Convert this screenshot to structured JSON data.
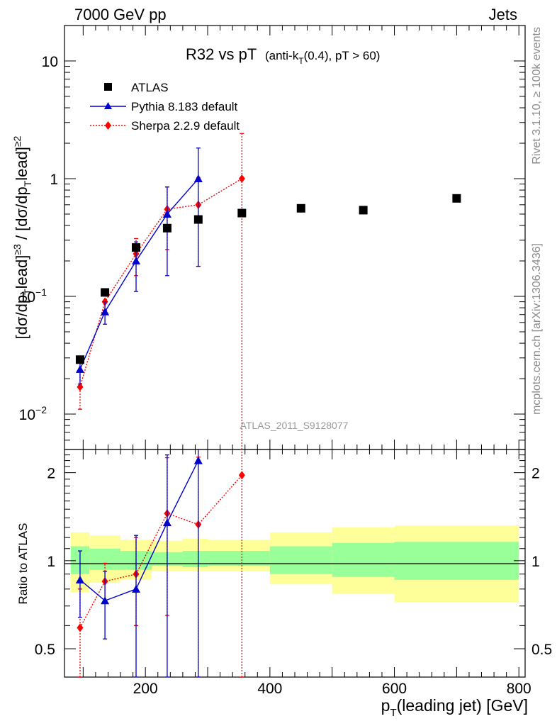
{
  "header": {
    "left": "7000 GeV pp",
    "right": "Jets"
  },
  "side_labels": {
    "rivet": "Rivet 3.1.10, ≥ 100k events",
    "mcplots": "mcplots.cern.ch [arXiv:1306.3436]"
  },
  "watermark": "ATLAS_2011_S9128077",
  "colors": {
    "atlas": "#000000",
    "pythia": "#0000cc",
    "sherpa": "#ff0000",
    "band_inner": "#99ff99",
    "band_outer": "#ffff99"
  },
  "chart_data": {
    "type": "scatter",
    "title": "R32 vs pT",
    "title_sub": "(anti-k",
    "title_sub_T": "T",
    "title_sub_rest": "(0.4), pT > 60)",
    "xlabel": "(leading jet) [GeV]",
    "xlabel_p": "p",
    "xlabel_T": "T",
    "ylabel": "[dσ/dpᵀlead]≥3 / [dσ/dpᵀlead]≥2",
    "ylabel_parts": {
      "a": "[dσ/dp",
      "b": "lead]",
      "c": "≥3",
      "d": " / [dσ/dp",
      "e": "lead]",
      "f": "≥2",
      "T": "T"
    },
    "ratio_ylabel": "Ratio to ATLAS",
    "xlim": [
      70,
      810
    ],
    "ylim": [
      0.005,
      20
    ],
    "ratio_ylim": [
      0.4,
      2.4
    ],
    "xticks": [
      200,
      400,
      600,
      800
    ],
    "xtick_labels": [
      "200",
      "400",
      "600",
      "800"
    ],
    "yticks_main": [
      {
        "base": "10",
        "exp": "−2"
      },
      {
        "base": "10",
        "exp": "−1"
      },
      {
        "base": "1",
        "exp": ""
      },
      {
        "base": "10",
        "exp": ""
      }
    ],
    "yticks_ratio": [
      "0.5",
      "1",
      "2"
    ],
    "yticks_ratio_right": [
      "0.5",
      "1",
      "2"
    ],
    "series": [
      {
        "name": "ATLAS",
        "kind": "data",
        "x": [
          95,
          135,
          185,
          235,
          285,
          355,
          450,
          550,
          700
        ],
        "y": [
          0.029,
          0.108,
          0.26,
          0.38,
          0.45,
          0.51,
          0.56,
          0.54,
          0.68
        ]
      },
      {
        "name": "Pythia 8.183 default",
        "kind": "mc",
        "x": [
          95,
          135,
          185,
          235,
          285
        ],
        "y": [
          0.024,
          0.074,
          0.2,
          0.5,
          1.0
        ],
        "err": [
          0.006,
          0.016,
          0.09,
          0.35,
          0.82
        ]
      },
      {
        "name": "Sherpa 2.2.9 default",
        "kind": "mc",
        "x": [
          95,
          135,
          185,
          235,
          285,
          355
        ],
        "y": [
          0.017,
          0.09,
          0.23,
          0.55,
          0.6,
          1.0
        ],
        "err": [
          0.006,
          0.014,
          0.08,
          0.3,
          0.42,
          1.42
        ]
      }
    ],
    "ratio_series": [
      {
        "name": "Pythia 8.183 default",
        "x": [
          95,
          135,
          185,
          235,
          285
        ],
        "y": [
          0.86,
          0.73,
          0.8,
          1.35,
          2.2
        ],
        "err": [
          0.22,
          0.19,
          0.42,
          0.95,
          1.8
        ]
      },
      {
        "name": "Sherpa 2.2.9 default",
        "x": [
          95,
          135,
          185,
          235,
          285,
          355
        ],
        "y": [
          0.59,
          0.85,
          0.9,
          1.45,
          1.33,
          1.96
        ],
        "err": [
          0.21,
          0.13,
          0.3,
          0.8,
          0.93,
          2.8
        ]
      }
    ],
    "bands": {
      "edges": [
        80,
        110,
        160,
        210,
        260,
        300,
        400,
        500,
        600,
        800
      ],
      "inner_lo": [
        0.9,
        0.93,
        0.93,
        0.96,
        0.95,
        0.96,
        0.9,
        0.88,
        0.86
      ],
      "inner_hi": [
        1.12,
        1.1,
        1.08,
        1.07,
        1.08,
        1.08,
        1.12,
        1.15,
        1.16
      ],
      "outer_lo": [
        0.78,
        0.84,
        0.86,
        0.92,
        0.92,
        0.92,
        0.83,
        0.77,
        0.72
      ],
      "outer_hi": [
        1.25,
        1.22,
        1.18,
        1.17,
        1.19,
        1.18,
        1.25,
        1.3,
        1.32
      ]
    }
  }
}
